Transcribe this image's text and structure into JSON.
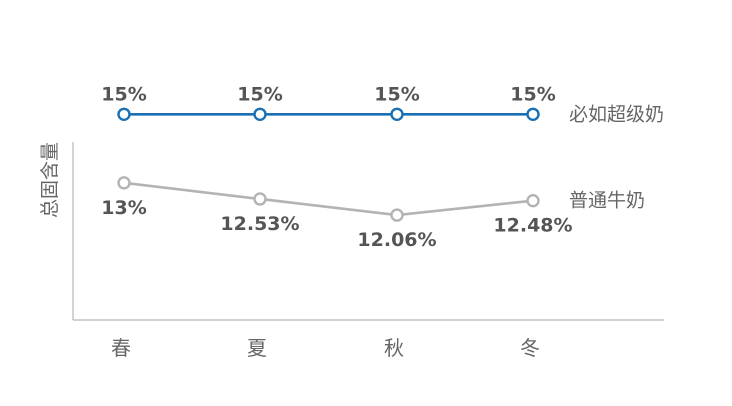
{
  "chart_data": {
    "type": "line",
    "categories": [
      "春",
      "夏",
      "秋",
      "冬"
    ],
    "ylabel": "总固含量",
    "xlabel": "",
    "title": "",
    "series": [
      {
        "name": "必如超级奶",
        "values": [
          15,
          15,
          15,
          15
        ],
        "labels": [
          "15%",
          "15%",
          "15%",
          "15%"
        ],
        "color": "#1a6fb5"
      },
      {
        "name": "普通牛奶",
        "values": [
          13,
          12.53,
          12.06,
          12.48
        ],
        "labels": [
          "13%",
          "12.53%",
          "12.06%",
          "12.48%"
        ],
        "color": "#b3b3b3"
      }
    ],
    "ylim": [
      9,
      16
    ],
    "grid": false,
    "legend": "right-of-lines"
  }
}
